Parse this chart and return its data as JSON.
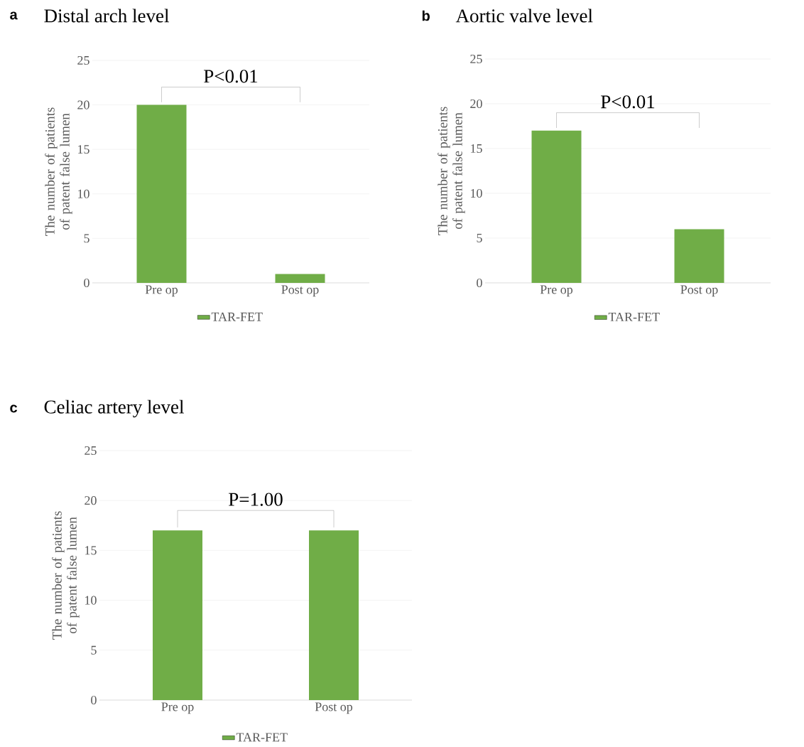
{
  "chart_data": [
    {
      "type": "bar",
      "title": "Distal arch level",
      "ylabel": "The number of patients of patent false lumen",
      "categories": [
        "Pre op",
        "Post op"
      ],
      "series": [
        {
          "name": "TAR-FET",
          "color": "#70ad47",
          "values": [
            20,
            1
          ]
        }
      ],
      "ylim": [
        0,
        25
      ],
      "yticks": [
        0,
        5,
        10,
        15,
        20,
        25
      ],
      "grid": "y",
      "legend": "bottom",
      "annotations": [
        "a",
        "P<0.01"
      ]
    },
    {
      "type": "bar",
      "title": "Aortic valve level",
      "ylabel": "The number of patients of patent false lumen",
      "categories": [
        "Pre op",
        "Post op"
      ],
      "series": [
        {
          "name": "TAR-FET",
          "color": "#70ad47",
          "values": [
            17,
            6
          ]
        }
      ],
      "ylim": [
        0,
        25
      ],
      "yticks": [
        0,
        5,
        10,
        15,
        20,
        25
      ],
      "grid": "y",
      "legend": "bottom",
      "annotations": [
        "b",
        "P<0.01"
      ]
    },
    {
      "type": "bar",
      "title": "Celiac artery level",
      "ylabel": "The number of patients of patent false lumen",
      "categories": [
        "Pre op",
        "Post op"
      ],
      "series": [
        {
          "name": "TAR-FET",
          "color": "#70ad47",
          "values": [
            17,
            17
          ]
        }
      ],
      "ylim": [
        0,
        25
      ],
      "yticks": [
        0,
        5,
        10,
        15,
        20,
        25
      ],
      "grid": "y",
      "legend": "bottom",
      "annotations": [
        "c",
        "P=1.00"
      ]
    }
  ]
}
